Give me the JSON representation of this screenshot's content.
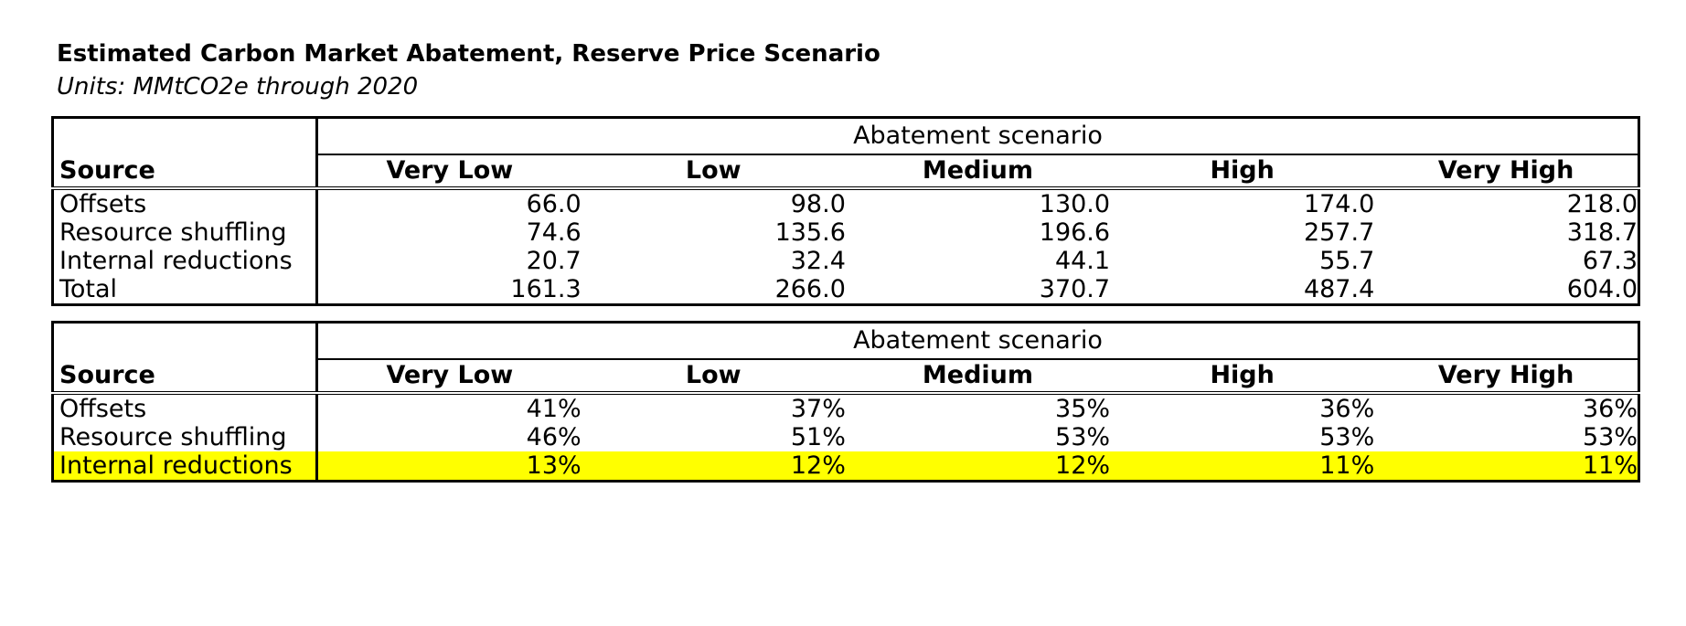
{
  "title": "Estimated Carbon Market Abatement, Reserve Price Scenario",
  "subtitle": "Units: MMtCO2e through 2020",
  "tables": [
    {
      "scenario_header": "Abatement scenario",
      "source_header": "Source",
      "columns": [
        "Very Low",
        "Low",
        "Medium",
        "High",
        "Very High"
      ],
      "rows": [
        {
          "label": "Offsets",
          "values": [
            "66.0",
            "98.0",
            "130.0",
            "174.0",
            "218.0"
          ]
        },
        {
          "label": "Resource shuffling",
          "values": [
            "74.6",
            "135.6",
            "196.6",
            "257.7",
            "318.7"
          ]
        },
        {
          "label": "Internal reductions",
          "values": [
            "20.7",
            "32.4",
            "44.1",
            "55.7",
            "67.3"
          ]
        },
        {
          "label": "Total",
          "values": [
            "161.3",
            "266.0",
            "370.7",
            "487.4",
            "604.0"
          ]
        }
      ]
    },
    {
      "scenario_header": "Abatement scenario",
      "source_header": "Source",
      "columns": [
        "Very Low",
        "Low",
        "Medium",
        "High",
        "Very High"
      ],
      "rows": [
        {
          "label": "Offsets",
          "values": [
            "41%",
            "37%",
            "35%",
            "36%",
            "36%"
          ]
        },
        {
          "label": "Resource shuffling",
          "values": [
            "46%",
            "51%",
            "53%",
            "53%",
            "53%"
          ]
        },
        {
          "label": "Internal reductions",
          "values": [
            "13%",
            "12%",
            "12%",
            "11%",
            "11%"
          ],
          "highlight": true
        }
      ]
    }
  ],
  "colors": {
    "highlight": "#ffff00",
    "border": "#000000",
    "text": "#000000",
    "background": "#ffffff"
  }
}
